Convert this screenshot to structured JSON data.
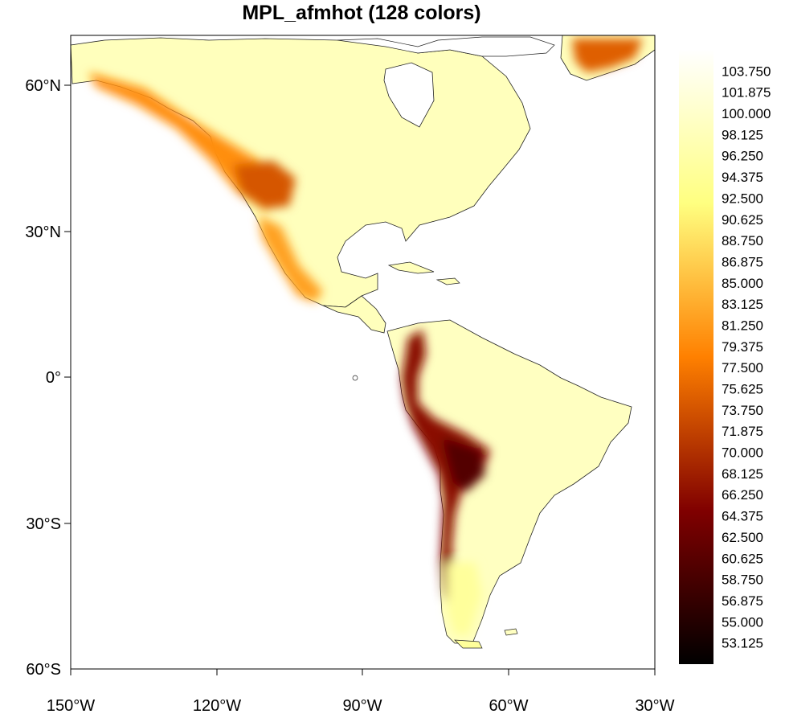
{
  "title": "MPL_afmhot (128 colors)",
  "chart_data": {
    "type": "heatmap",
    "projection": "cylindrical-equidistant",
    "title": "MPL_afmhot (128 colors)",
    "lon_range": [
      -150,
      -30
    ],
    "lat_range": [
      -60,
      70
    ],
    "x_ticks": [
      {
        "value": -150,
        "label": "150°W"
      },
      {
        "value": -120,
        "label": "120°W"
      },
      {
        "value": -90,
        "label": "90°W"
      },
      {
        "value": -60,
        "label": "60°W"
      },
      {
        "value": -30,
        "label": "30°W"
      }
    ],
    "y_ticks": [
      {
        "value": 60,
        "label": "60°N"
      },
      {
        "value": 30,
        "label": "30°N"
      },
      {
        "value": 0,
        "label": "0°"
      },
      {
        "value": -30,
        "label": "30°S"
      },
      {
        "value": -60,
        "label": "60°S"
      }
    ],
    "colorbar": {
      "colormap": "MPL_afmhot",
      "n_colors": 128,
      "range": [
        51.25,
        105.625
      ],
      "labels": [
        "103.750",
        "101.875",
        "100.000",
        "98.125",
        "96.250",
        "94.375",
        "92.500",
        "90.625",
        "88.750",
        "86.875",
        "85.000",
        "83.125",
        "81.250",
        "79.375",
        "77.500",
        "75.625",
        "73.750",
        "71.875",
        "70.000",
        "68.125",
        "66.250",
        "64.375",
        "62.500",
        "60.625",
        "58.750",
        "56.875",
        "55.000",
        "53.125"
      ]
    },
    "regions": [
      {
        "name": "north-america",
        "value": 98.5
      },
      {
        "name": "rocky-mountains",
        "value": 80
      },
      {
        "name": "colorado-plateau",
        "value": 74
      },
      {
        "name": "sierra-madre",
        "value": 82
      },
      {
        "name": "greenland",
        "value": 75
      },
      {
        "name": "south-america",
        "value": 99
      },
      {
        "name": "andes",
        "value": 66
      },
      {
        "name": "altiplano",
        "value": 60
      },
      {
        "name": "patagonia",
        "value": 95
      }
    ]
  }
}
